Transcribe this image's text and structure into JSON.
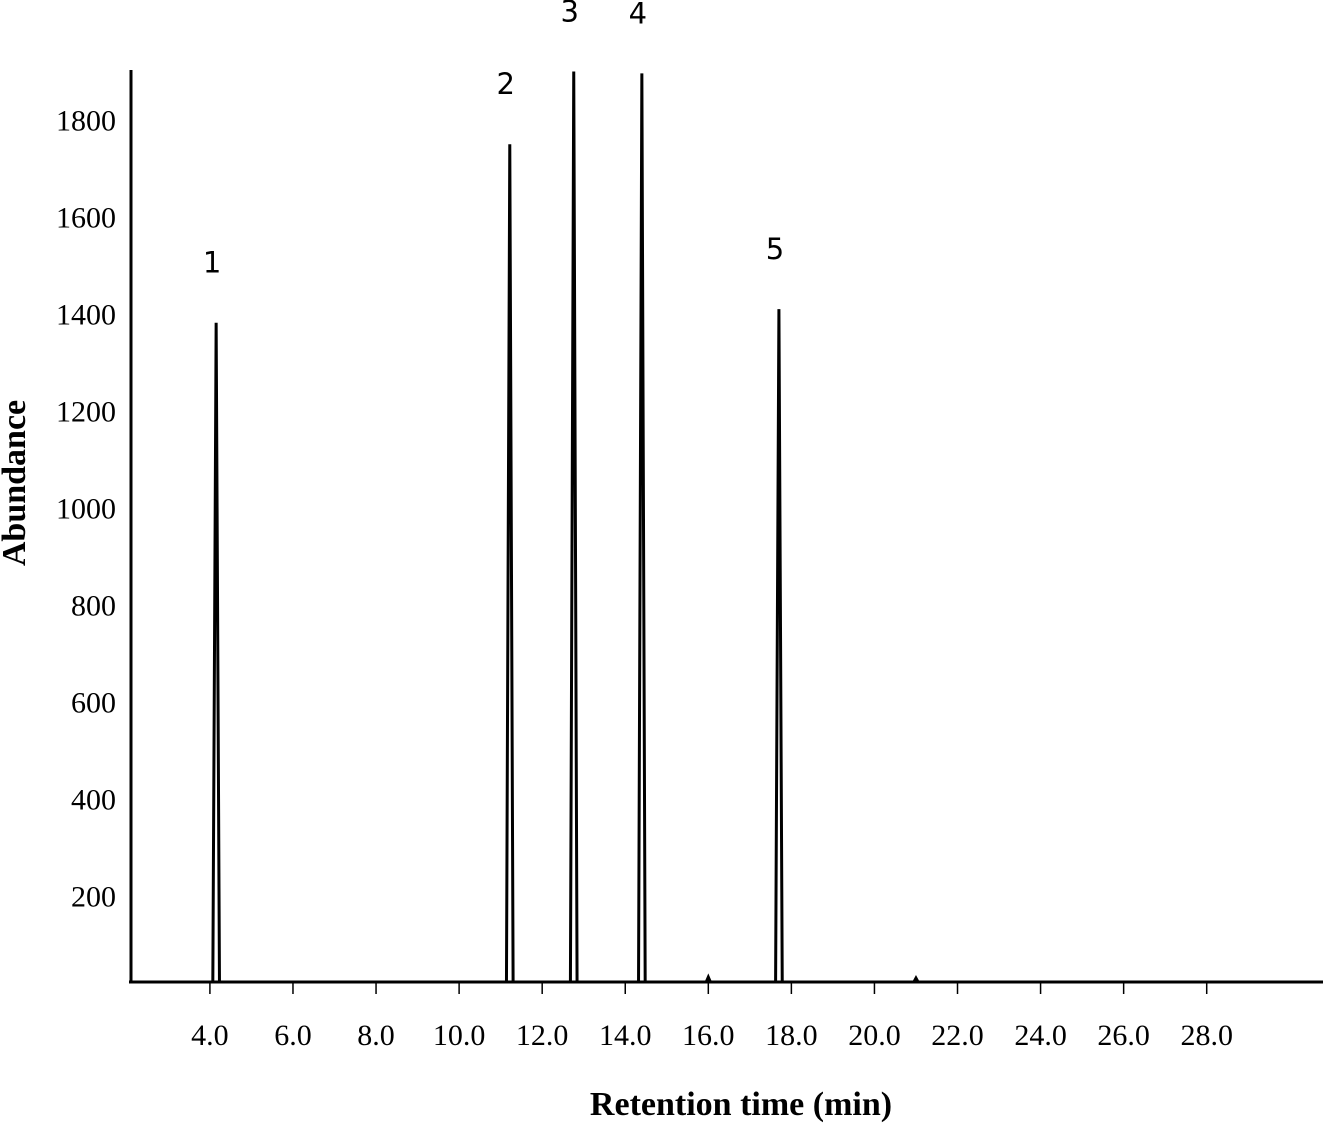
{
  "chart_data": {
    "type": "line",
    "xlabel": "Retention time (min)",
    "ylabel": "Abundance",
    "color": "#000000",
    "x": [
      2.1,
      4.07,
      4.15,
      4.23,
      11.14,
      11.22,
      11.3,
      12.68,
      12.76,
      12.84,
      14.32,
      14.4,
      14.48,
      15.95,
      16.0,
      16.05,
      17.62,
      17.7,
      17.78,
      20.95,
      21.0,
      21.05,
      30.8
    ],
    "values": [
      30,
      30,
      1389,
      30,
      30,
      1757,
      30,
      30,
      1907,
      30,
      30,
      1903,
      30,
      30,
      40,
      30,
      30,
      1417,
      30,
      30,
      38,
      30,
      30
    ],
    "annotations": [
      {
        "text": "1",
        "x": 4.15,
        "y": 1389
      },
      {
        "text": "2",
        "x": 11.22,
        "y": 1757
      },
      {
        "text": "3",
        "x": 12.76,
        "y": 1907
      },
      {
        "text": "4",
        "x": 14.4,
        "y": 1903
      },
      {
        "text": "5",
        "x": 17.7,
        "y": 1417
      }
    ],
    "xlim": [
      2.1,
      30.8
    ],
    "ylim": [
      30,
      1910
    ],
    "xticks": [
      {
        "value": 4,
        "label": "4.0"
      },
      {
        "value": 6,
        "label": "6.0"
      },
      {
        "value": 8,
        "label": "8.0"
      },
      {
        "value": 10,
        "label": "10.0"
      },
      {
        "value": 12,
        "label": "12.0"
      },
      {
        "value": 14,
        "label": "14.0"
      },
      {
        "value": 16,
        "label": "16.0"
      },
      {
        "value": 18,
        "label": "18.0"
      },
      {
        "value": 20,
        "label": "20.0"
      },
      {
        "value": 22,
        "label": "22.0"
      },
      {
        "value": 24,
        "label": "24.0"
      },
      {
        "value": 26,
        "label": "26.0"
      },
      {
        "value": 28,
        "label": "28.0"
      }
    ],
    "yticks": [
      200,
      400,
      600,
      800,
      1000,
      1200,
      1400,
      1600,
      1800
    ],
    "grid": false
  }
}
